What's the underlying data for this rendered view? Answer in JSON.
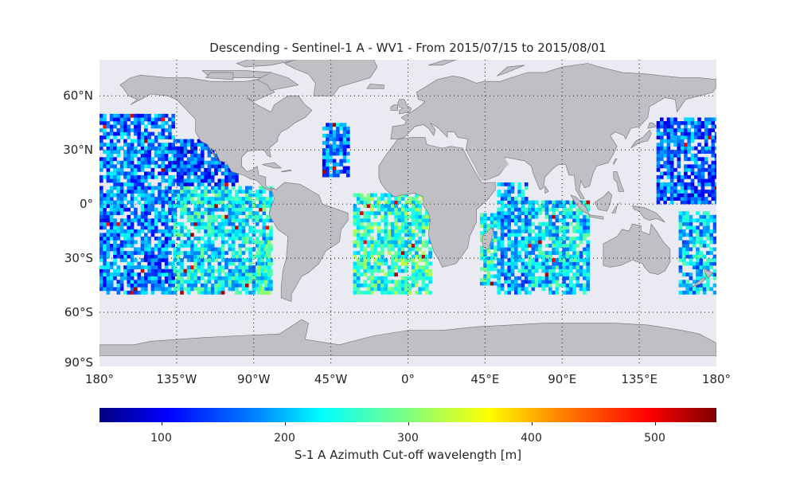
{
  "title": "Descending - Sentinel-1 A - WV1 - From 2015/07/15 to 2015/08/01",
  "lat_ticks": [
    {
      "value": 60,
      "label": "60°N"
    },
    {
      "value": 30,
      "label": "30°N"
    },
    {
      "value": 0,
      "label": "0°"
    },
    {
      "value": -30,
      "label": "30°S"
    },
    {
      "value": -60,
      "label": "60°S"
    },
    {
      "value": -90,
      "label": "90°S"
    }
  ],
  "lon_ticks": [
    {
      "value": -180,
      "label": "180°"
    },
    {
      "value": -135,
      "label": "135°W"
    },
    {
      "value": -90,
      "label": "90°W"
    },
    {
      "value": -45,
      "label": "45°W"
    },
    {
      "value": 0,
      "label": "0°"
    },
    {
      "value": 45,
      "label": "45°E"
    },
    {
      "value": 90,
      "label": "90°E"
    },
    {
      "value": 135,
      "label": "135°E"
    },
    {
      "value": 180,
      "label": "180°"
    }
  ],
  "colorbar": {
    "label": "S-1 A Azimuth Cut-off wavelength [m]",
    "range": [
      50,
      550
    ],
    "ticks": [
      100,
      200,
      300,
      400,
      500
    ],
    "colormap": "jet"
  },
  "colors": {
    "ocean": "#eaeaf2",
    "land": "#bfbfc4",
    "coast": "#6e6e74"
  },
  "chart_data": {
    "type": "heatmap",
    "title": "Descending - Sentinel-1 A - WV1 - From 2015/07/15 to 2015/08/01",
    "xlim": [
      -180,
      180
    ],
    "ylim": [
      -90,
      80
    ],
    "grid": true,
    "colorbar_label": "S-1 A Azimuth Cut-off wavelength [m]",
    "value_range": [
      50,
      550
    ],
    "regions": [
      {
        "lon": [
          -180,
          -137
        ],
        "lat": [
          -50,
          50
        ],
        "mean": 175
      },
      {
        "lon": [
          -137,
          -80
        ],
        "lat": [
          -50,
          10
        ],
        "mean": 230
      },
      {
        "lon": [
          -137,
          -100
        ],
        "lat": [
          10,
          35
        ],
        "mean": 150
      },
      {
        "lon": [
          -88,
          -80
        ],
        "lat": [
          -50,
          -20
        ],
        "mean": 250
      },
      {
        "lon": [
          -50,
          -35
        ],
        "lat": [
          15,
          45
        ],
        "mean": 170
      },
      {
        "lon": [
          -32,
          14
        ],
        "lat": [
          -50,
          5
        ],
        "mean": 260
      },
      {
        "lon": [
          42,
          52
        ],
        "lat": [
          -45,
          -5
        ],
        "mean": 250
      },
      {
        "lon": [
          52,
          70
        ],
        "lat": [
          -50,
          12
        ],
        "mean": 200
      },
      {
        "lon": [
          70,
          105
        ],
        "lat": [
          -50,
          2
        ],
        "mean": 220
      },
      {
        "lon": [
          145,
          180
        ],
        "lat": [
          0,
          48
        ],
        "mean": 160
      },
      {
        "lon": [
          158,
          180
        ],
        "lat": [
          -50,
          -5
        ],
        "mean": 210
      }
    ]
  }
}
